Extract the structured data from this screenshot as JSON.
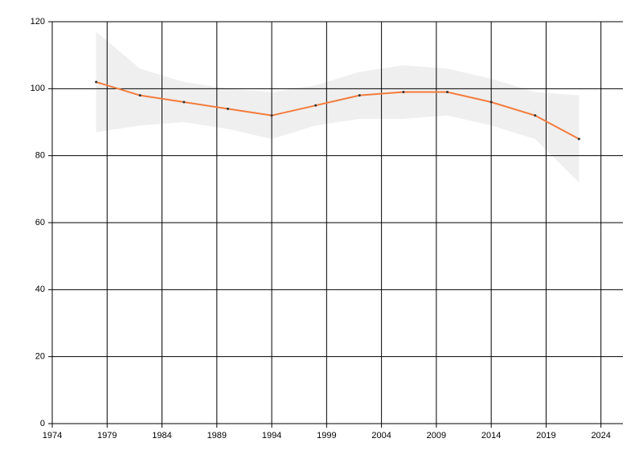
{
  "chart_data": {
    "type": "line",
    "x": [
      1978,
      1982,
      1986,
      1990,
      1994,
      1998,
      2002,
      2006,
      2010,
      2014,
      2018,
      2022
    ],
    "series": [
      {
        "color": "#f47b3c",
        "values": [
          102,
          98,
          96,
          94,
          92,
          95,
          98,
          99,
          99,
          96,
          92,
          85
        ]
      }
    ],
    "band": {
      "color": "#efefef",
      "upper": [
        117,
        106,
        102,
        100,
        99,
        101,
        105,
        107,
        106,
        103,
        99,
        98
      ],
      "lower": [
        87,
        89,
        90,
        88,
        85,
        89,
        91,
        91,
        92,
        89,
        85,
        72
      ]
    },
    "xlim": [
      1974,
      2026
    ],
    "xticks": [
      1974,
      1979,
      1984,
      1989,
      1994,
      1999,
      2004,
      2009,
      2014,
      2019,
      2024
    ],
    "ylim": [
      0,
      120
    ],
    "yticks": [
      0,
      20,
      40,
      60,
      80,
      100,
      120
    ],
    "grid": true
  }
}
